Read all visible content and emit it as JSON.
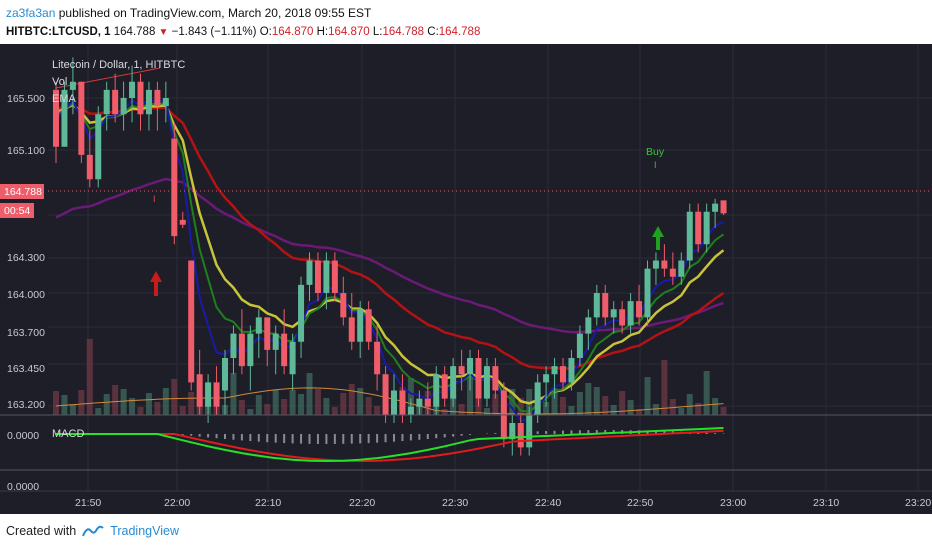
{
  "header": {
    "author": "za3fa3an",
    "published_text": "published on TradingView.com, March 20, 2018 09:55 EST",
    "symbol": "HITBTC:LTCUSD, 1",
    "last_price": "164.788",
    "change": "−1.843 (−1.11%)",
    "open_label": "O:",
    "open": "164.870",
    "high_label": "H:",
    "high": "164.870",
    "low_label": "L:",
    "low": "164.788",
    "close_label": "C:",
    "close": "164.788"
  },
  "legend": {
    "title": "Litecoin / Dollar, 1, HITBTC",
    "vol": "Vol",
    "ema": "EMA",
    "macd": "MACD",
    "buy_label": "Buy",
    "buy_marker": "I",
    "sell_marker": "I"
  },
  "price_axis": {
    "labels": [
      "165.500",
      "165.100",
      "164.300",
      "164.000",
      "163.700",
      "163.450",
      "163.200"
    ],
    "current_price_tag": "164.788",
    "countdown_tag": "00:54",
    "macd_labels": [
      "0.0000",
      "0.0000"
    ]
  },
  "time_axis": {
    "labels": [
      "21:50",
      "22:00",
      "22:10",
      "22:20",
      "22:30",
      "22:40",
      "22:50",
      "23:00",
      "23:10",
      "23:20"
    ]
  },
  "colors": {
    "background": "#1e1e28",
    "up_candle": "#5fb897",
    "down_candle": "#ef5c6a",
    "ema_blue": "#1a1aa8",
    "ema_green": "#1f7f1f",
    "ema_yellow": "#c8c43a",
    "ema_red": "#b51313",
    "ema_purple": "#6b1a78",
    "macd_line": "#27e027",
    "signal_line": "#e01c1c"
  },
  "footer": {
    "created_with": "Created with",
    "brand": "TradingView"
  },
  "chart_data": {
    "type": "candlestick",
    "title": "Litecoin / Dollar, 1, HITBTC",
    "x_ticks": [
      "21:50",
      "22:00",
      "22:10",
      "22:20",
      "22:30",
      "22:40",
      "22:50",
      "23:00",
      "23:10",
      "23:20"
    ],
    "y_ticks": [
      165.5,
      165.1,
      164.3,
      164.0,
      163.7,
      163.45,
      163.2
    ],
    "current_price": 164.788,
    "candles": [
      [
        165.55,
        165.6,
        165.1,
        165.2
      ],
      [
        165.2,
        165.6,
        165.2,
        165.55
      ],
      [
        165.55,
        165.75,
        165.4,
        165.6
      ],
      [
        165.6,
        165.6,
        165.1,
        165.15
      ],
      [
        165.15,
        165.3,
        164.95,
        165.0
      ],
      [
        165.0,
        165.45,
        164.95,
        165.4
      ],
      [
        165.4,
        165.6,
        165.3,
        165.55
      ],
      [
        165.55,
        165.65,
        165.35,
        165.4
      ],
      [
        165.4,
        165.6,
        165.3,
        165.5
      ],
      [
        165.5,
        165.7,
        165.35,
        165.6
      ],
      [
        165.6,
        165.65,
        165.3,
        165.4
      ],
      [
        165.4,
        165.6,
        165.3,
        165.55
      ],
      [
        165.55,
        165.6,
        165.3,
        165.45
      ],
      [
        165.45,
        165.6,
        165.35,
        165.5
      ],
      [
        165.25,
        165.35,
        164.6,
        164.65
      ],
      [
        164.75,
        164.8,
        164.7,
        164.72
      ],
      [
        164.5,
        164.5,
        163.7,
        163.75
      ],
      [
        163.8,
        163.95,
        163.55,
        163.6
      ],
      [
        163.6,
        163.8,
        163.5,
        163.75
      ],
      [
        163.75,
        163.85,
        163.55,
        163.6
      ],
      [
        163.7,
        163.95,
        163.55,
        163.9
      ],
      [
        163.9,
        164.1,
        163.8,
        164.05
      ],
      [
        164.05,
        164.2,
        163.8,
        163.85
      ],
      [
        163.85,
        164.1,
        163.7,
        164.05
      ],
      [
        164.05,
        164.2,
        163.9,
        164.15
      ],
      [
        164.15,
        164.15,
        163.85,
        163.95
      ],
      [
        163.95,
        164.1,
        163.8,
        164.05
      ],
      [
        164.05,
        164.2,
        163.8,
        163.85
      ],
      [
        163.8,
        164.05,
        163.7,
        164.0
      ],
      [
        164.0,
        164.4,
        163.9,
        164.35
      ],
      [
        164.35,
        164.55,
        164.25,
        164.5
      ],
      [
        164.5,
        164.55,
        164.25,
        164.3
      ],
      [
        164.3,
        164.55,
        164.2,
        164.5
      ],
      [
        164.5,
        164.55,
        164.25,
        164.3
      ],
      [
        164.3,
        164.4,
        164.1,
        164.15
      ],
      [
        164.15,
        164.3,
        163.95,
        164.0
      ],
      [
        164.0,
        164.25,
        163.9,
        164.2
      ],
      [
        164.2,
        164.25,
        163.95,
        164.0
      ],
      [
        164.0,
        164.1,
        163.7,
        163.8
      ],
      [
        163.8,
        163.85,
        163.5,
        163.55
      ],
      [
        163.55,
        163.8,
        163.5,
        163.7
      ],
      [
        163.7,
        163.8,
        163.5,
        163.55
      ],
      [
        163.55,
        163.65,
        163.5,
        163.6
      ],
      [
        163.6,
        163.7,
        163.55,
        163.65
      ],
      [
        163.65,
        163.75,
        163.55,
        163.6
      ],
      [
        163.6,
        163.85,
        163.55,
        163.8
      ],
      [
        163.8,
        163.85,
        163.6,
        163.65
      ],
      [
        163.65,
        163.9,
        163.6,
        163.85
      ],
      [
        163.85,
        163.95,
        163.7,
        163.8
      ],
      [
        163.8,
        163.95,
        163.7,
        163.9
      ],
      [
        163.9,
        163.95,
        163.6,
        163.65
      ],
      [
        163.65,
        163.9,
        163.6,
        163.85
      ],
      [
        163.85,
        163.9,
        163.65,
        163.7
      ],
      [
        163.7,
        163.75,
        163.35,
        163.4
      ],
      [
        163.4,
        163.55,
        163.3,
        163.5
      ],
      [
        163.5,
        163.55,
        163.3,
        163.35
      ],
      [
        163.35,
        163.6,
        163.3,
        163.55
      ],
      [
        163.55,
        163.8,
        163.5,
        163.75
      ],
      [
        163.75,
        163.85,
        163.6,
        163.8
      ],
      [
        163.8,
        163.9,
        163.65,
        163.85
      ],
      [
        163.85,
        163.9,
        163.7,
        163.75
      ],
      [
        163.75,
        163.95,
        163.7,
        163.9
      ],
      [
        163.9,
        164.1,
        163.85,
        164.05
      ],
      [
        164.05,
        164.2,
        163.95,
        164.15
      ],
      [
        164.15,
        164.35,
        164.1,
        164.3
      ],
      [
        164.3,
        164.35,
        164.1,
        164.15
      ],
      [
        164.15,
        164.25,
        164.05,
        164.2
      ],
      [
        164.2,
        164.25,
        164.05,
        164.1
      ],
      [
        164.1,
        164.3,
        164.05,
        164.25
      ],
      [
        164.25,
        164.35,
        164.1,
        164.15
      ],
      [
        164.15,
        164.5,
        164.1,
        164.45
      ],
      [
        164.45,
        164.55,
        164.35,
        164.5
      ],
      [
        164.5,
        164.6,
        164.4,
        164.45
      ],
      [
        164.45,
        164.55,
        164.35,
        164.4
      ],
      [
        164.4,
        164.55,
        164.35,
        164.5
      ],
      [
        164.5,
        164.85,
        164.45,
        164.8
      ],
      [
        164.8,
        164.85,
        164.55,
        164.6
      ],
      [
        164.6,
        164.85,
        164.55,
        164.8
      ],
      [
        164.8,
        164.88,
        164.7,
        164.85
      ],
      [
        164.87,
        164.87,
        164.78,
        164.79
      ]
    ]
  }
}
